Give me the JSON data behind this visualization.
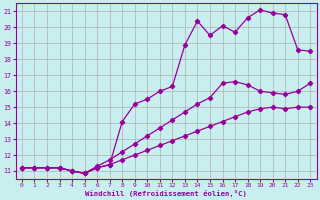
{
  "xlabel": "Windchill (Refroidissement éolien,°C)",
  "bg_color": "#c8eef0",
  "grid_color": "#b0b0b0",
  "line_color": "#990099",
  "xlim": [
    -0.5,
    23.5
  ],
  "ylim": [
    10.5,
    21.5
  ],
  "xticks": [
    0,
    1,
    2,
    3,
    4,
    5,
    6,
    7,
    8,
    9,
    10,
    11,
    12,
    13,
    14,
    15,
    16,
    17,
    18,
    19,
    20,
    21,
    22,
    23
  ],
  "yticks": [
    11,
    12,
    13,
    14,
    15,
    16,
    17,
    18,
    19,
    20,
    21
  ],
  "line1_x": [
    0,
    1,
    2,
    3,
    4,
    5,
    6,
    7,
    8,
    9,
    10,
    11,
    12,
    13,
    14,
    15,
    16,
    17,
    18,
    19,
    20,
    21,
    22,
    23
  ],
  "line1_y": [
    11.2,
    11.2,
    11.2,
    11.2,
    11.0,
    10.85,
    11.2,
    11.4,
    14.1,
    15.2,
    15.5,
    16.0,
    16.3,
    18.9,
    20.4,
    19.5,
    20.1,
    19.7,
    20.6,
    21.1,
    20.9,
    20.8,
    18.6,
    18.5
  ],
  "line2_x": [
    0,
    1,
    2,
    3,
    4,
    5,
    6,
    7,
    8,
    9,
    10,
    11,
    12,
    13,
    14,
    15,
    16,
    17,
    18,
    19,
    20,
    21,
    22,
    23
  ],
  "line2_y": [
    11.2,
    11.2,
    11.2,
    11.2,
    11.0,
    10.85,
    11.3,
    11.7,
    12.2,
    12.7,
    13.2,
    13.7,
    14.2,
    14.7,
    15.2,
    15.6,
    16.5,
    16.6,
    16.4,
    16.0,
    15.9,
    15.8,
    16.0,
    16.5
  ],
  "line3_x": [
    0,
    1,
    2,
    3,
    4,
    5,
    6,
    7,
    8,
    9,
    10,
    11,
    12,
    13,
    14,
    15,
    16,
    17,
    18,
    19,
    20,
    21,
    22,
    23
  ],
  "line3_y": [
    11.2,
    11.2,
    11.2,
    11.2,
    11.0,
    10.85,
    11.2,
    11.4,
    11.7,
    12.0,
    12.3,
    12.6,
    12.9,
    13.2,
    13.5,
    13.8,
    14.1,
    14.4,
    14.7,
    14.9,
    15.0,
    14.9,
    15.0,
    15.0
  ]
}
